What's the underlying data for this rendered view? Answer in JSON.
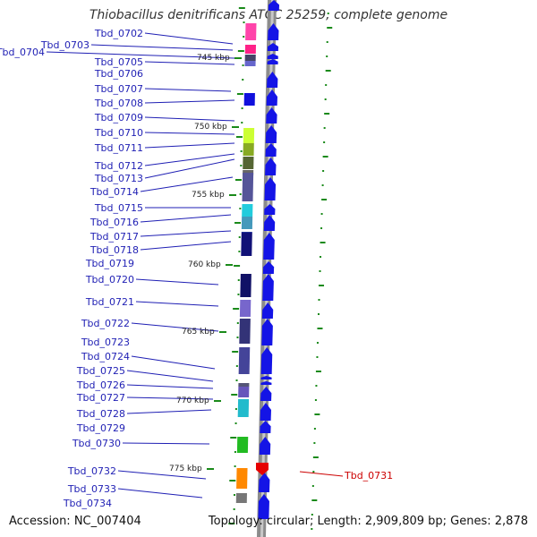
{
  "title": "Thiobacillus denitrificans ATCC 25259, complete genome",
  "accession": "Accession: NC_007404",
  "topology": "Topology: circular; Length: 2,909,809 bp; Genes: 2,878",
  "colors": {
    "label": "#1f1fb4",
    "label_red": "#cc0000",
    "gene_arrow": "#1414e6",
    "reverse_gene": "#e60000",
    "backbone": "#8c8c8c",
    "gc_tick": "#1a8a1a"
  },
  "kbp_markers": [
    "745 kbp",
    "750 kbp",
    "755 kbp",
    "760 kbp",
    "765 kbp",
    "770 kbp",
    "775 kbp"
  ],
  "genes": [
    {
      "label": "Tbd_0702",
      "color": "#ff44aa"
    },
    {
      "label": "Tbd_0703",
      "color": "#ff2288"
    },
    {
      "label": "Tbd_0704",
      "color": "#444466"
    },
    {
      "label": "Tbd_0705",
      "color": "#6666cc"
    },
    {
      "label": "Tbd_0706",
      "color": "#ffffff"
    },
    {
      "label": "Tbd_0707",
      "color": "#ffffff"
    },
    {
      "label": "Tbd_0708",
      "color": "#1010dd"
    },
    {
      "label": "Tbd_0709",
      "color": "#ffffff"
    },
    {
      "label": "Tbd_0710",
      "color": "#ccff33"
    },
    {
      "label": "Tbd_0711",
      "color": "#88aa22"
    },
    {
      "label": "Tbd_0712",
      "color": "#556633"
    },
    {
      "label": "Tbd_0713",
      "color": "#666666"
    },
    {
      "label": "Tbd_0714",
      "color": "#555599"
    },
    {
      "label": "Tbd_0715",
      "color": "#22ccdd"
    },
    {
      "label": "Tbd_0716",
      "color": "#4499bb"
    },
    {
      "label": "Tbd_0717",
      "color": "#223399"
    },
    {
      "label": "Tbd_0718",
      "color": "#111177"
    },
    {
      "label": "Tbd_0719",
      "color": "#ffffff"
    },
    {
      "label": "Tbd_0720",
      "color": "#111166"
    },
    {
      "label": "Tbd_0721",
      "color": "#7766cc"
    },
    {
      "label": "Tbd_0722",
      "color": "#333377"
    },
    {
      "label": "Tbd_0723",
      "color": "#ffffff"
    },
    {
      "label": "Tbd_0724",
      "color": "#444499"
    },
    {
      "label": "Tbd_0725",
      "color": "#ffffff"
    },
    {
      "label": "Tbd_0726",
      "color": "#555577"
    },
    {
      "label": "Tbd_0727",
      "color": "#6655bb"
    },
    {
      "label": "Tbd_0728",
      "color": "#22bbcc"
    },
    {
      "label": "Tbd_0729",
      "color": "#ffffff"
    },
    {
      "label": "Tbd_0730",
      "color": "#22bb22"
    },
    {
      "label": "Tbd_0731",
      "color": "#e60000"
    },
    {
      "label": "Tbd_0732",
      "color": "#ff8800"
    },
    {
      "label": "Tbd_0733",
      "color": "#777777"
    },
    {
      "label": "Tbd_0734",
      "color": "#ffffff"
    }
  ]
}
